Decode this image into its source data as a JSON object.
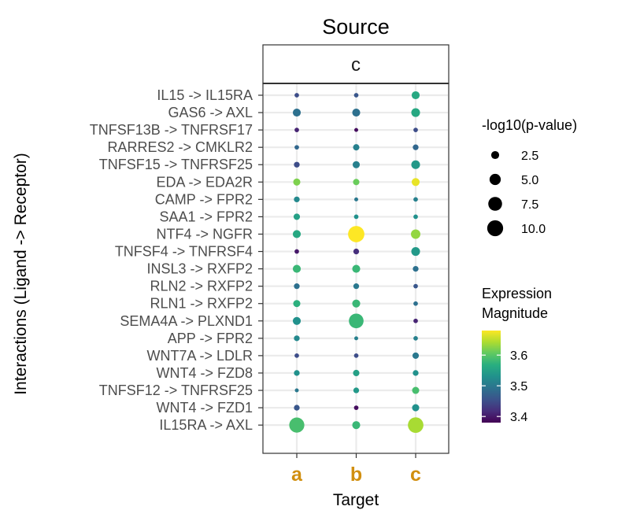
{
  "chart_data": {
    "type": "scatter",
    "title": "Source",
    "facet": "c",
    "xlabel": "Target",
    "ylabel": "Interactions (Ligand -> Receptor)",
    "x_categories": [
      "a",
      "b",
      "c"
    ],
    "y_categories": [
      "IL15 -> IL15RA",
      "GAS6 -> AXL",
      "TNFSF13B -> TNFRSF17",
      "RARRES2 -> CMKLR2",
      "TNFSF15 -> TNFRSF25",
      "EDA -> EDA2R",
      "CAMP -> FPR2",
      "SAA1 -> FPR2",
      "NTF4 -> NGFR",
      "TNFSF4 -> TNFRSF4",
      "INSL3 -> RXFP2",
      "RLN2 -> RXFP2",
      "RLN1 -> RXFP2",
      "SEMA4A -> PLXND1",
      "APP -> FPR2",
      "WNT7A -> LDLR",
      "WNT4 -> FZD8",
      "TNFSF12 -> TNFRSF25",
      "WNT4 -> FZD1",
      "IL15RA -> AXL"
    ],
    "points": [
      {
        "y": "IL15 -> IL15RA",
        "x": "a",
        "size": 0.8,
        "color": 3.45
      },
      {
        "y": "IL15 -> IL15RA",
        "x": "b",
        "size": 0.8,
        "color": 3.46
      },
      {
        "y": "IL15 -> IL15RA",
        "x": "c",
        "size": 2.5,
        "color": 3.56
      },
      {
        "y": "GAS6 -> AXL",
        "x": "a",
        "size": 2.5,
        "color": 3.49
      },
      {
        "y": "GAS6 -> AXL",
        "x": "b",
        "size": 2.5,
        "color": 3.49
      },
      {
        "y": "GAS6 -> AXL",
        "x": "c",
        "size": 3.0,
        "color": 3.56
      },
      {
        "y": "TNFSF13B -> TNFRSF17",
        "x": "a",
        "size": 0.8,
        "color": 3.41
      },
      {
        "y": "TNFSF13B -> TNFRSF17",
        "x": "b",
        "size": 0.6,
        "color": 3.39
      },
      {
        "y": "TNFSF13B -> TNFRSF17",
        "x": "c",
        "size": 0.8,
        "color": 3.45
      },
      {
        "y": "RARRES2 -> CMKLR2",
        "x": "a",
        "size": 0.8,
        "color": 3.48
      },
      {
        "y": "RARRES2 -> CMKLR2",
        "x": "b",
        "size": 1.6,
        "color": 3.51
      },
      {
        "y": "RARRES2 -> CMKLR2",
        "x": "c",
        "size": 1.3,
        "color": 3.48
      },
      {
        "y": "TNFSF15 -> TNFRSF25",
        "x": "a",
        "size": 1.3,
        "color": 3.45
      },
      {
        "y": "TNFSF15 -> TNFRSF25",
        "x": "b",
        "size": 2.0,
        "color": 3.51
      },
      {
        "y": "TNFSF15 -> TNFRSF25",
        "x": "c",
        "size": 3.0,
        "color": 3.54
      },
      {
        "y": "EDA -> EDA2R",
        "x": "a",
        "size": 2.0,
        "color": 3.62
      },
      {
        "y": "EDA -> EDA2R",
        "x": "b",
        "size": 1.6,
        "color": 3.61
      },
      {
        "y": "EDA -> EDA2R",
        "x": "c",
        "size": 2.5,
        "color": 3.67
      },
      {
        "y": "CAMP -> FPR2",
        "x": "a",
        "size": 1.3,
        "color": 3.52
      },
      {
        "y": "CAMP -> FPR2",
        "x": "b",
        "size": 0.6,
        "color": 3.5
      },
      {
        "y": "CAMP -> FPR2",
        "x": "c",
        "size": 0.8,
        "color": 3.51
      },
      {
        "y": "SAA1 -> FPR2",
        "x": "a",
        "size": 1.6,
        "color": 3.55
      },
      {
        "y": "SAA1 -> FPR2",
        "x": "b",
        "size": 0.8,
        "color": 3.53
      },
      {
        "y": "SAA1 -> FPR2",
        "x": "c",
        "size": 0.8,
        "color": 3.53
      },
      {
        "y": "NTF4 -> NGFR",
        "x": "a",
        "size": 2.5,
        "color": 3.56
      },
      {
        "y": "NTF4 -> NGFR",
        "x": "b",
        "size": 10.5,
        "color": 3.68
      },
      {
        "y": "NTF4 -> NGFR",
        "x": "c",
        "size": 3.5,
        "color": 3.63
      },
      {
        "y": "TNFSF4 -> TNFRSF4",
        "x": "a",
        "size": 0.8,
        "color": 3.4
      },
      {
        "y": "TNFSF4 -> TNFRSF4",
        "x": "b",
        "size": 1.3,
        "color": 3.42
      },
      {
        "y": "TNFSF4 -> TNFRSF4",
        "x": "c",
        "size": 3.0,
        "color": 3.54
      },
      {
        "y": "INSL3 -> RXFP2",
        "x": "a",
        "size": 2.5,
        "color": 3.58
      },
      {
        "y": "INSL3 -> RXFP2",
        "x": "b",
        "size": 2.5,
        "color": 3.58
      },
      {
        "y": "INSL3 -> RXFP2",
        "x": "c",
        "size": 1.3,
        "color": 3.49
      },
      {
        "y": "RLN2 -> RXFP2",
        "x": "a",
        "size": 1.3,
        "color": 3.49
      },
      {
        "y": "RLN2 -> RXFP2",
        "x": "b",
        "size": 1.3,
        "color": 3.5
      },
      {
        "y": "RLN2 -> RXFP2",
        "x": "c",
        "size": 0.8,
        "color": 3.46
      },
      {
        "y": "RLN1 -> RXFP2",
        "x": "a",
        "size": 2.0,
        "color": 3.57
      },
      {
        "y": "RLN1 -> RXFP2",
        "x": "b",
        "size": 2.5,
        "color": 3.58
      },
      {
        "y": "RLN1 -> RXFP2",
        "x": "c",
        "size": 0.8,
        "color": 3.49
      },
      {
        "y": "SEMA4A -> PLXND1",
        "x": "a",
        "size": 2.5,
        "color": 3.53
      },
      {
        "y": "SEMA4A -> PLXND1",
        "x": "b",
        "size": 8.5,
        "color": 3.58
      },
      {
        "y": "SEMA4A -> PLXND1",
        "x": "c",
        "size": 0.8,
        "color": 3.41
      },
      {
        "y": "APP -> FPR2",
        "x": "a",
        "size": 1.3,
        "color": 3.52
      },
      {
        "y": "APP -> FPR2",
        "x": "b",
        "size": 0.6,
        "color": 3.51
      },
      {
        "y": "APP -> FPR2",
        "x": "c",
        "size": 0.8,
        "color": 3.51
      },
      {
        "y": "WNT7A -> LDLR",
        "x": "a",
        "size": 0.8,
        "color": 3.45
      },
      {
        "y": "WNT7A -> LDLR",
        "x": "b",
        "size": 0.8,
        "color": 3.45
      },
      {
        "y": "WNT7A -> LDLR",
        "x": "c",
        "size": 1.6,
        "color": 3.5
      },
      {
        "y": "WNT4 -> FZD8",
        "x": "a",
        "size": 1.3,
        "color": 3.53
      },
      {
        "y": "WNT4 -> FZD8",
        "x": "b",
        "size": 1.6,
        "color": 3.55
      },
      {
        "y": "WNT4 -> FZD8",
        "x": "c",
        "size": 1.3,
        "color": 3.53
      },
      {
        "y": "TNFSF12 -> TNFRSF25",
        "x": "a",
        "size": 0.6,
        "color": 3.5
      },
      {
        "y": "TNFSF12 -> TNFRSF25",
        "x": "b",
        "size": 1.3,
        "color": 3.54
      },
      {
        "y": "TNFSF12 -> TNFRSF25",
        "x": "c",
        "size": 2.0,
        "color": 3.59
      },
      {
        "y": "WNT4 -> FZD1",
        "x": "a",
        "size": 1.3,
        "color": 3.46
      },
      {
        "y": "WNT4 -> FZD1",
        "x": "b",
        "size": 0.8,
        "color": 3.39
      },
      {
        "y": "WNT4 -> FZD1",
        "x": "c",
        "size": 2.0,
        "color": 3.53
      },
      {
        "y": "IL15RA -> AXL",
        "x": "a",
        "size": 9.0,
        "color": 3.59
      },
      {
        "y": "IL15RA -> AXL",
        "x": "b",
        "size": 2.5,
        "color": 3.58
      },
      {
        "y": "IL15RA -> AXL",
        "x": "c",
        "size": 9.5,
        "color": 3.64
      }
    ],
    "size_legend": {
      "title": "-log10(p-value)",
      "values": [
        2.5,
        5.0,
        7.5,
        10.0
      ],
      "labels": [
        "2.5",
        "5.0",
        "7.5",
        "10.0"
      ]
    },
    "color_legend": {
      "title_lines": [
        "Expression",
        "Magnitude"
      ],
      "range": [
        3.38,
        3.68
      ],
      "ticks": [
        3.4,
        3.5,
        3.6
      ],
      "tick_labels": [
        "3.4",
        "3.5",
        "3.6"
      ],
      "palette": "viridis"
    },
    "grid": true,
    "legend_position": "right",
    "x_tick_color": "#d18f10"
  }
}
